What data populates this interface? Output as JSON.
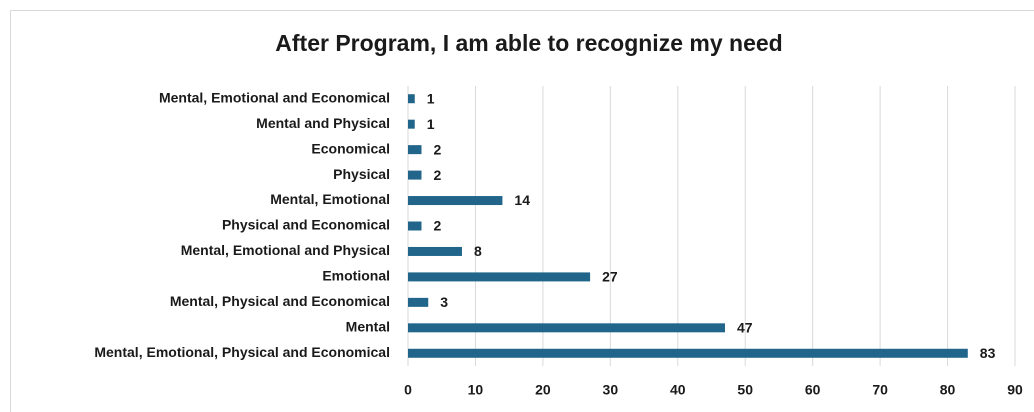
{
  "chart_data": {
    "type": "bar",
    "orientation": "horizontal",
    "title": "After Program,  I am able to recognize my need",
    "categories": [
      "Mental, Emotional and Economical",
      "Mental and  Physical",
      "Economical",
      "Physical",
      "Mental, Emotional",
      "Physical and Economical",
      "Mental, Emotional and Physical",
      "Emotional",
      "Mental, Physical and Economical",
      "Mental",
      "Mental, Emotional, Physical and Economical"
    ],
    "values": [
      1,
      1,
      2,
      2,
      14,
      2,
      8,
      27,
      3,
      47,
      83
    ],
    "color": "#21658b",
    "xlim": [
      0,
      90
    ],
    "xticks": [
      0,
      10,
      20,
      30,
      40,
      50,
      60,
      70,
      80,
      90
    ],
    "grid": true
  }
}
